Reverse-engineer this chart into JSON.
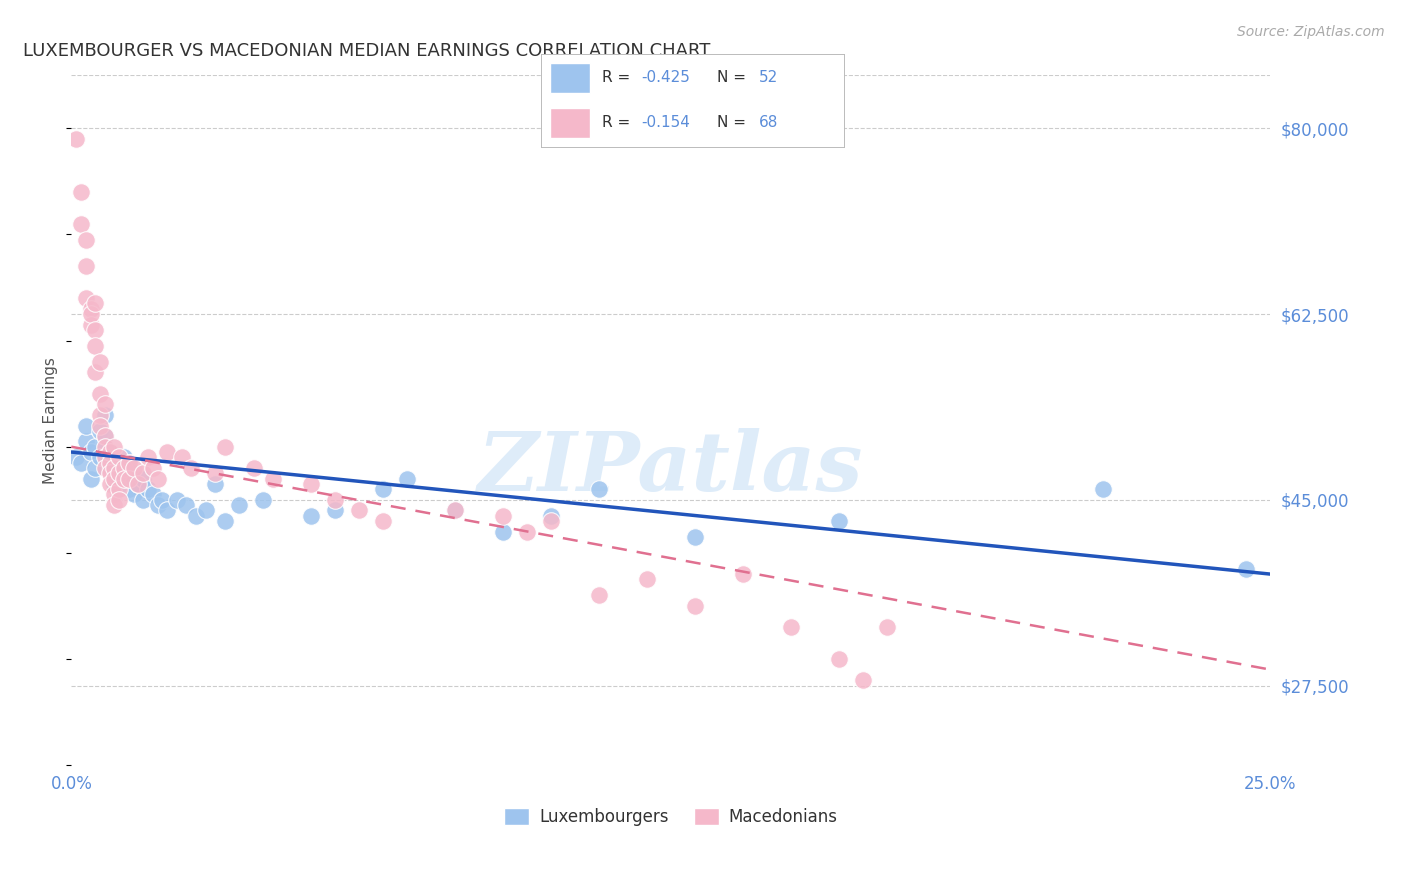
{
  "title": "LUXEMBOURGER VS MACEDONIAN MEDIAN EARNINGS CORRELATION CHART",
  "source": "Source: ZipAtlas.com",
  "ylabel": "Median Earnings",
  "yticks": [
    27500,
    45000,
    62500,
    80000
  ],
  "ytick_labels": [
    "$27,500",
    "$45,000",
    "$62,500",
    "$80,000"
  ],
  "xlim": [
    0.0,
    0.25
  ],
  "ylim": [
    20000,
    85000
  ],
  "legend_blue_r": "-0.425",
  "legend_blue_n": "52",
  "legend_pink_r": "-0.154",
  "legend_pink_n": "68",
  "blue_color": "#9ec4ee",
  "pink_color": "#f5b8ca",
  "trendline_blue_color": "#2255bb",
  "trendline_pink_color": "#e07090",
  "watermark": "ZIPatlas",
  "watermark_color": "#d0e4f7",
  "blue_points": [
    [
      0.001,
      49000
    ],
    [
      0.002,
      48500
    ],
    [
      0.003,
      50500
    ],
    [
      0.003,
      52000
    ],
    [
      0.004,
      49500
    ],
    [
      0.004,
      47000
    ],
    [
      0.005,
      50000
    ],
    [
      0.005,
      48000
    ],
    [
      0.006,
      51500
    ],
    [
      0.006,
      49000
    ],
    [
      0.007,
      53000
    ],
    [
      0.007,
      51000
    ],
    [
      0.008,
      49500
    ],
    [
      0.008,
      48000
    ],
    [
      0.009,
      47500
    ],
    [
      0.009,
      46500
    ],
    [
      0.01,
      48000
    ],
    [
      0.01,
      47000
    ],
    [
      0.011,
      49000
    ],
    [
      0.011,
      47500
    ],
    [
      0.012,
      48500
    ],
    [
      0.012,
      46000
    ],
    [
      0.013,
      47000
    ],
    [
      0.013,
      45500
    ],
    [
      0.014,
      46500
    ],
    [
      0.015,
      47000
    ],
    [
      0.015,
      45000
    ],
    [
      0.016,
      46000
    ],
    [
      0.017,
      45500
    ],
    [
      0.018,
      44500
    ],
    [
      0.019,
      45000
    ],
    [
      0.02,
      44000
    ],
    [
      0.022,
      45000
    ],
    [
      0.024,
      44500
    ],
    [
      0.026,
      43500
    ],
    [
      0.028,
      44000
    ],
    [
      0.03,
      46500
    ],
    [
      0.032,
      43000
    ],
    [
      0.035,
      44500
    ],
    [
      0.04,
      45000
    ],
    [
      0.05,
      43500
    ],
    [
      0.055,
      44000
    ],
    [
      0.065,
      46000
    ],
    [
      0.07,
      47000
    ],
    [
      0.08,
      44000
    ],
    [
      0.09,
      42000
    ],
    [
      0.1,
      43500
    ],
    [
      0.11,
      46000
    ],
    [
      0.13,
      41500
    ],
    [
      0.16,
      43000
    ],
    [
      0.215,
      46000
    ],
    [
      0.245,
      38500
    ]
  ],
  "pink_points": [
    [
      0.001,
      79000
    ],
    [
      0.002,
      74000
    ],
    [
      0.002,
      71000
    ],
    [
      0.003,
      69500
    ],
    [
      0.003,
      67000
    ],
    [
      0.003,
      64000
    ],
    [
      0.004,
      63000
    ],
    [
      0.004,
      61500
    ],
    [
      0.004,
      62500
    ],
    [
      0.005,
      63500
    ],
    [
      0.005,
      61000
    ],
    [
      0.005,
      59500
    ],
    [
      0.005,
      57000
    ],
    [
      0.006,
      58000
    ],
    [
      0.006,
      55000
    ],
    [
      0.006,
      53000
    ],
    [
      0.006,
      52000
    ],
    [
      0.007,
      54000
    ],
    [
      0.007,
      51000
    ],
    [
      0.007,
      50000
    ],
    [
      0.007,
      49000
    ],
    [
      0.007,
      48000
    ],
    [
      0.008,
      49500
    ],
    [
      0.008,
      48500
    ],
    [
      0.008,
      47500
    ],
    [
      0.008,
      46500
    ],
    [
      0.009,
      50000
    ],
    [
      0.009,
      48000
    ],
    [
      0.009,
      47000
    ],
    [
      0.009,
      45500
    ],
    [
      0.009,
      44500
    ],
    [
      0.01,
      49000
    ],
    [
      0.01,
      47500
    ],
    [
      0.01,
      46000
    ],
    [
      0.01,
      45000
    ],
    [
      0.011,
      48000
    ],
    [
      0.011,
      47000
    ],
    [
      0.012,
      48500
    ],
    [
      0.012,
      47000
    ],
    [
      0.013,
      48000
    ],
    [
      0.014,
      46500
    ],
    [
      0.015,
      47500
    ],
    [
      0.016,
      49000
    ],
    [
      0.017,
      48000
    ],
    [
      0.018,
      47000
    ],
    [
      0.02,
      49500
    ],
    [
      0.023,
      49000
    ],
    [
      0.025,
      48000
    ],
    [
      0.03,
      47500
    ],
    [
      0.032,
      50000
    ],
    [
      0.038,
      48000
    ],
    [
      0.042,
      47000
    ],
    [
      0.05,
      46500
    ],
    [
      0.055,
      45000
    ],
    [
      0.06,
      44000
    ],
    [
      0.065,
      43000
    ],
    [
      0.08,
      44000
    ],
    [
      0.09,
      43500
    ],
    [
      0.095,
      42000
    ],
    [
      0.1,
      43000
    ],
    [
      0.11,
      36000
    ],
    [
      0.12,
      37500
    ],
    [
      0.13,
      35000
    ],
    [
      0.14,
      38000
    ],
    [
      0.15,
      33000
    ],
    [
      0.16,
      30000
    ],
    [
      0.165,
      28000
    ],
    [
      0.17,
      33000
    ]
  ]
}
